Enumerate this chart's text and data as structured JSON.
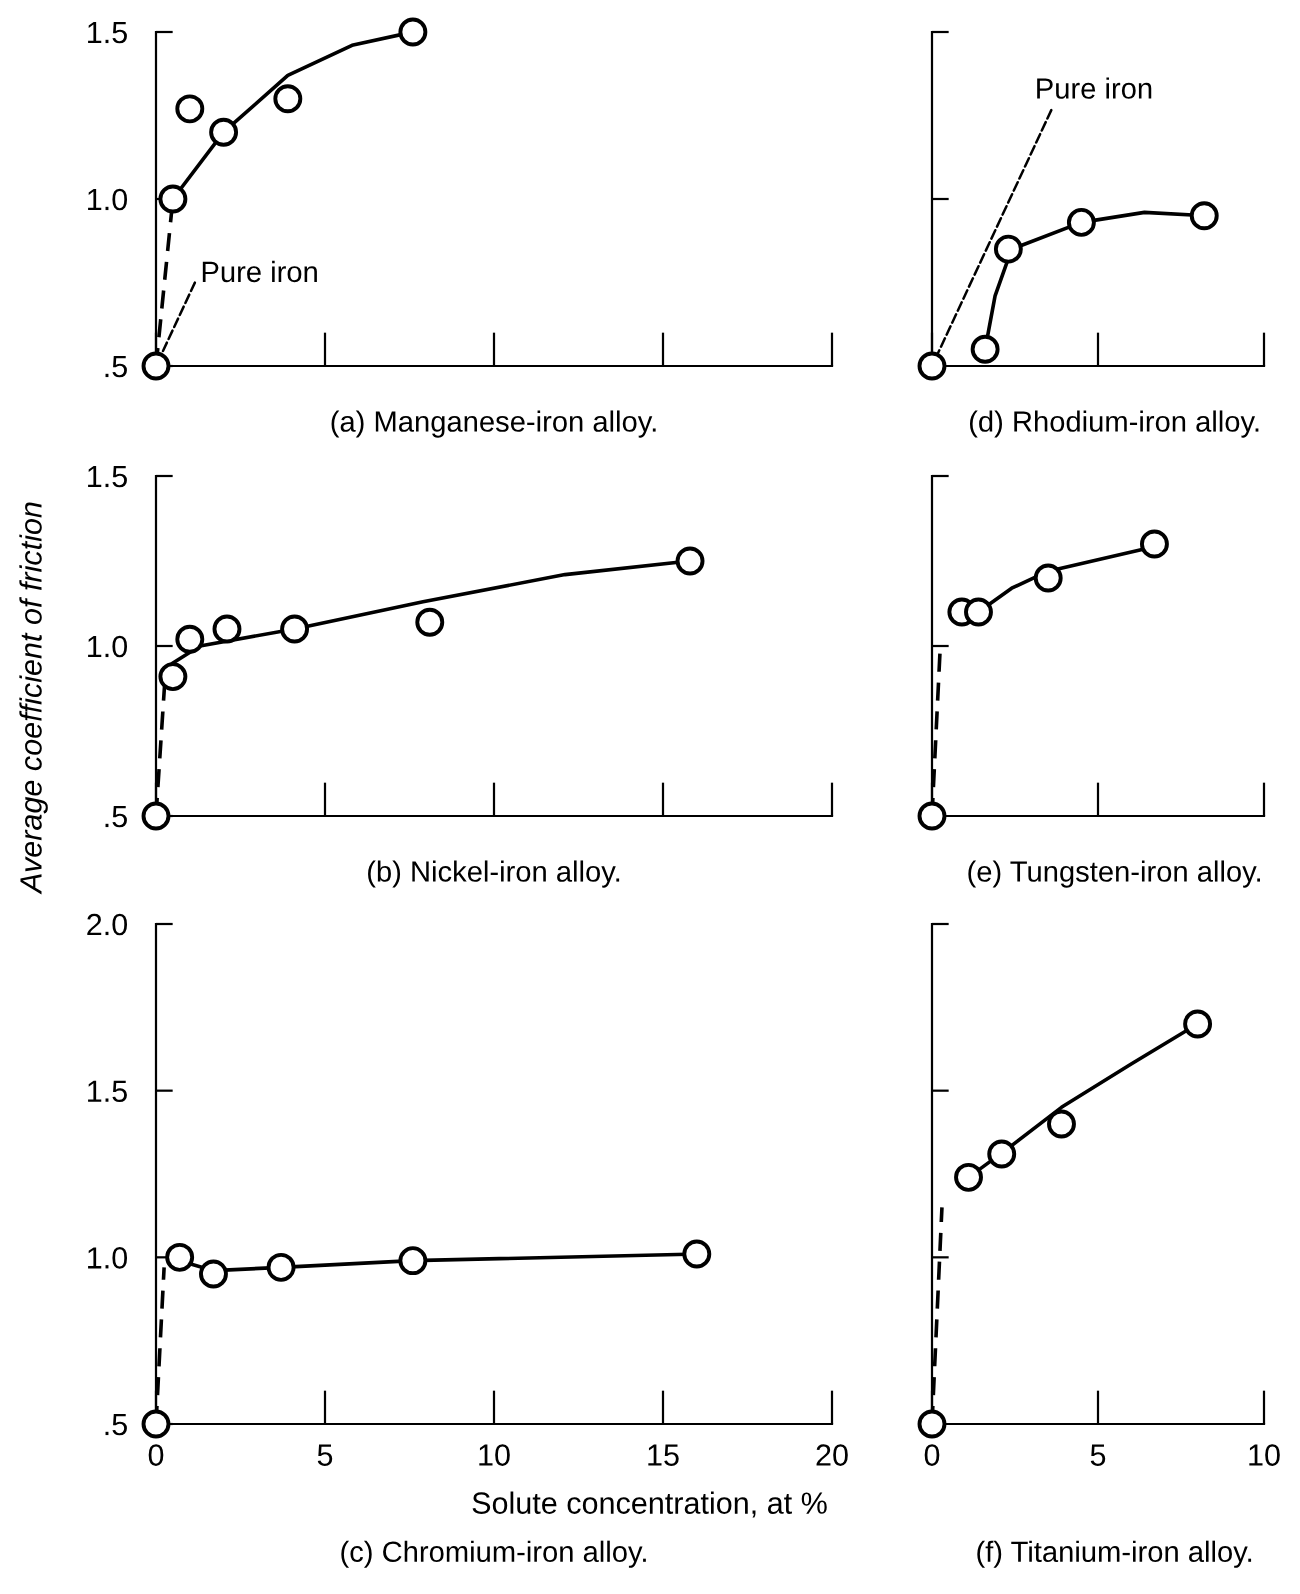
{
  "chart_data": [
    {
      "type": "scatter",
      "title": "(a) Manganese-iron alloy.",
      "tick_labels": "y",
      "xlim": [
        0,
        20
      ],
      "xticks": [
        0,
        5,
        10,
        15,
        20
      ],
      "ylim": [
        0.5,
        1.5
      ],
      "yticks": [
        {
          "value": 0.5,
          "label": ".5"
        },
        {
          "value": 1.0,
          "label": "1.0"
        },
        {
          "value": 1.5,
          "label": "1.5"
        }
      ],
      "annotations": [
        {
          "text": "Pure iron",
          "x": 0,
          "y": 0.5
        }
      ],
      "series": [
        {
          "marker": "circle",
          "color": "#000000",
          "x": [
            0,
            0.5,
            1.0,
            2.0,
            3.9,
            7.6
          ],
          "values": [
            0.5,
            1.0,
            1.27,
            1.2,
            1.3,
            1.5
          ]
        },
        {
          "type": "line",
          "line_style": "solid",
          "marker": "none",
          "color": "#000000",
          "x": [
            0.5,
            2.0,
            3.9,
            5.8,
            7.6
          ],
          "values": [
            1.0,
            1.2,
            1.37,
            1.46,
            1.5
          ]
        },
        {
          "type": "line",
          "line_style": "dashed",
          "marker": "none",
          "color": "#000000",
          "x": [
            0,
            0.5
          ],
          "values": [
            0.5,
            1.0
          ]
        }
      ]
    },
    {
      "type": "scatter",
      "title": "(d) Rhodium-iron alloy.",
      "tick_labels": false,
      "xlim": [
        0,
        10
      ],
      "xticks": [
        0,
        5,
        10
      ],
      "ylim": [
        0.5,
        1.5
      ],
      "yticks": [
        {
          "value": 1.0,
          "label": null
        },
        {
          "value": 1.5,
          "label": null
        }
      ],
      "annotations": [
        {
          "text": "Pure iron",
          "x": 0,
          "y": 0.5
        }
      ],
      "series": [
        {
          "marker": "circle",
          "color": "#000000",
          "x": [
            0,
            1.6,
            2.3,
            4.5,
            8.2
          ],
          "values": [
            0.5,
            0.55,
            0.85,
            0.93,
            0.95
          ]
        },
        {
          "type": "line",
          "line_style": "solid",
          "marker": "none",
          "color": "#000000",
          "x": [
            1.6,
            1.9,
            2.4,
            4.5,
            6.4,
            8.2
          ],
          "values": [
            0.55,
            0.71,
            0.85,
            0.93,
            0.96,
            0.95
          ]
        }
      ]
    },
    {
      "type": "scatter",
      "title": "(b) Nickel-iron alloy.",
      "ylabel": "Average coefficient of friction",
      "tick_labels": "y",
      "xlim": [
        0,
        20
      ],
      "xticks": [
        0,
        5,
        10,
        15,
        20
      ],
      "ylim": [
        0.5,
        1.5
      ],
      "yticks": [
        {
          "value": 0.5,
          "label": ".5"
        },
        {
          "value": 1.0,
          "label": "1.0"
        },
        {
          "value": 1.5,
          "label": "1.5"
        }
      ],
      "series": [
        {
          "marker": "circle",
          "color": "#000000",
          "x": [
            0,
            0.5,
            1.0,
            2.1,
            4.1,
            8.1,
            15.8
          ],
          "values": [
            0.5,
            0.91,
            1.02,
            1.05,
            1.05,
            1.07,
            1.25
          ]
        },
        {
          "type": "line",
          "line_style": "solid",
          "marker": "none",
          "color": "#000000",
          "x": [
            0.5,
            1.3,
            4.1,
            7.9,
            12.1,
            15.8
          ],
          "values": [
            0.95,
            1.0,
            1.05,
            1.13,
            1.21,
            1.25
          ]
        },
        {
          "type": "line",
          "line_style": "dashed",
          "marker": "none",
          "color": "#000000",
          "x": [
            0,
            0.25
          ],
          "values": [
            0.5,
            0.88
          ]
        }
      ]
    },
    {
      "type": "scatter",
      "title": "(e) Tungsten-iron alloy.",
      "tick_labels": false,
      "xlim": [
        0,
        10
      ],
      "xticks": [
        0,
        5,
        10
      ],
      "ylim": [
        0.5,
        1.5
      ],
      "yticks": [
        {
          "value": 1.0,
          "label": null
        },
        {
          "value": 1.5,
          "label": null
        }
      ],
      "series": [
        {
          "marker": "circle",
          "color": "#000000",
          "x": [
            0,
            0.9,
            1.4,
            3.5,
            6.7
          ],
          "values": [
            0.5,
            1.1,
            1.1,
            1.2,
            1.3
          ]
        },
        {
          "type": "line",
          "line_style": "solid",
          "marker": "none",
          "color": "#000000",
          "x": [
            1.4,
            2.4,
            3.5,
            6.6
          ],
          "values": [
            1.1,
            1.17,
            1.22,
            1.29
          ]
        },
        {
          "type": "line",
          "line_style": "dashed",
          "marker": "none",
          "color": "#000000",
          "x": [
            0,
            0.25
          ],
          "values": [
            0.5,
            1.0
          ]
        }
      ]
    },
    {
      "type": "scatter",
      "title": "(c) Chromium-iron alloy.",
      "xlabel": "Solute concentration, at %",
      "xlim": [
        0,
        20
      ],
      "xticks": [
        0,
        5,
        10,
        15,
        20
      ],
      "ylim": [
        0.5,
        2.0
      ],
      "yticks": [
        {
          "value": 0.5,
          "label": ".5"
        },
        {
          "value": 1.0,
          "label": "1.0"
        },
        1.5,
        {
          "value": 2.0,
          "label": "2.0"
        }
      ],
      "series": [
        {
          "marker": "circle",
          "color": "#000000",
          "x": [
            0,
            0.7,
            1.7,
            3.7,
            7.6,
            16.0
          ],
          "values": [
            0.5,
            1.0,
            0.95,
            0.97,
            0.99,
            1.01
          ]
        },
        {
          "type": "line",
          "line_style": "solid",
          "marker": "none",
          "color": "#000000",
          "x": [
            0.7,
            1.7,
            3.7,
            7.6,
            16.0
          ],
          "values": [
            0.99,
            0.96,
            0.97,
            0.99,
            1.01
          ]
        },
        {
          "type": "line",
          "line_style": "dashed",
          "marker": "none",
          "color": "#000000",
          "x": [
            0,
            0.24
          ],
          "values": [
            0.5,
            0.97
          ]
        }
      ]
    },
    {
      "type": "scatter",
      "title": "(f) Titanium-iron alloy.",
      "tick_labels": "x",
      "xlim": [
        0,
        10
      ],
      "xticks": [
        0,
        5,
        10
      ],
      "ylim": [
        0.5,
        2.0
      ],
      "yticks": [
        {
          "value": 1.0,
          "label": null
        },
        {
          "value": 1.5,
          "label": null
        },
        {
          "value": 2.0,
          "label": null
        }
      ],
      "series": [
        {
          "marker": "circle",
          "color": "#000000",
          "x": [
            0,
            1.1,
            2.1,
            3.9,
            8.0
          ],
          "values": [
            0.5,
            1.24,
            1.31,
            1.4,
            1.7
          ]
        },
        {
          "type": "line",
          "line_style": "solid",
          "marker": "none",
          "color": "#000000",
          "x": [
            1.1,
            2.2,
            3.9,
            6.0,
            8.0
          ],
          "values": [
            1.24,
            1.32,
            1.45,
            1.58,
            1.7
          ]
        },
        {
          "type": "line",
          "line_style": "dashed",
          "marker": "none",
          "color": "#000000",
          "x": [
            0,
            0.3
          ],
          "values": [
            0.5,
            1.15
          ]
        }
      ]
    }
  ]
}
